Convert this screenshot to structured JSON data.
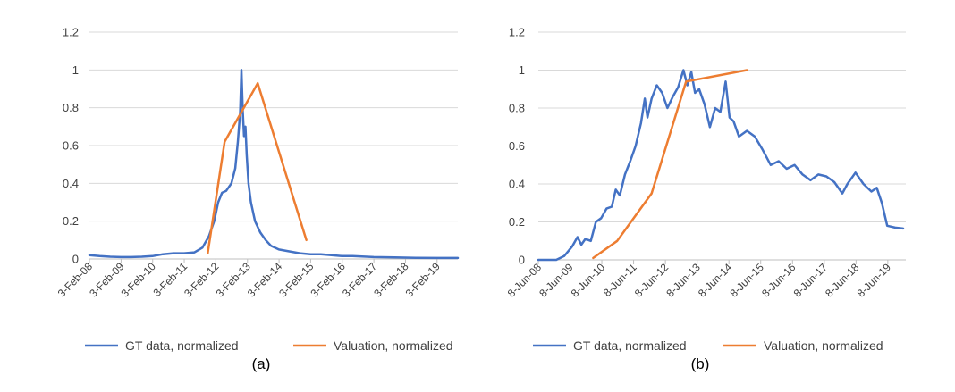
{
  "panels": [
    {
      "caption": "(a)",
      "legend": [
        "GT data, normalized",
        "Valuation, normalized"
      ],
      "chart_data": {
        "type": "line",
        "title": "",
        "xlabel": "",
        "ylabel": "",
        "ylim": [
          0,
          1.2
        ],
        "yticks": [
          "0",
          "0.2",
          "0.4",
          "0.6",
          "0.8",
          "1",
          "1.2"
        ],
        "xlim": [
          "2008-02-03",
          "2019-10-01"
        ],
        "xticks": [
          {
            "date": "2008-02-03",
            "label": "3-Feb-08"
          },
          {
            "date": "2009-02-03",
            "label": "3-Feb-09"
          },
          {
            "date": "2010-02-03",
            "label": "3-Feb-10"
          },
          {
            "date": "2011-02-03",
            "label": "3-Feb-11"
          },
          {
            "date": "2012-02-03",
            "label": "3-Feb-12"
          },
          {
            "date": "2013-02-03",
            "label": "3-Feb-13"
          },
          {
            "date": "2014-02-03",
            "label": "3-Feb-14"
          },
          {
            "date": "2015-02-03",
            "label": "3-Feb-15"
          },
          {
            "date": "2016-02-03",
            "label": "3-Feb-16"
          },
          {
            "date": "2017-02-03",
            "label": "3-Feb-17"
          },
          {
            "date": "2018-02-03",
            "label": "3-Feb-18"
          },
          {
            "date": "2019-02-03",
            "label": "3-Feb-19"
          }
        ],
        "grid": true,
        "legend_position": "bottom",
        "series": [
          {
            "name": "GT data, normalized",
            "color": "#4472C4",
            "points": [
              [
                "2008-02-03",
                0.02
              ],
              [
                "2008-06-01",
                0.015
              ],
              [
                "2008-10-01",
                0.012
              ],
              [
                "2009-02-01",
                0.01
              ],
              [
                "2009-06-01",
                0.01
              ],
              [
                "2009-10-01",
                0.012
              ],
              [
                "2010-02-01",
                0.015
              ],
              [
                "2010-06-01",
                0.025
              ],
              [
                "2010-10-01",
                0.03
              ],
              [
                "2011-02-01",
                0.03
              ],
              [
                "2011-06-01",
                0.035
              ],
              [
                "2011-09-01",
                0.06
              ],
              [
                "2011-11-15",
                0.12
              ],
              [
                "2012-01-15",
                0.2
              ],
              [
                "2012-03-01",
                0.3
              ],
              [
                "2012-04-15",
                0.35
              ],
              [
                "2012-06-01",
                0.36
              ],
              [
                "2012-08-01",
                0.4
              ],
              [
                "2012-09-15",
                0.48
              ],
              [
                "2012-10-15",
                0.62
              ],
              [
                "2012-11-10",
                0.78
              ],
              [
                "2012-11-25",
                1.0
              ],
              [
                "2012-12-10",
                0.78
              ],
              [
                "2012-12-25",
                0.65
              ],
              [
                "2013-01-10",
                0.7
              ],
              [
                "2013-01-25",
                0.55
              ],
              [
                "2013-02-15",
                0.4
              ],
              [
                "2013-03-15",
                0.3
              ],
              [
                "2013-05-01",
                0.2
              ],
              [
                "2013-07-01",
                0.14
              ],
              [
                "2013-09-01",
                0.1
              ],
              [
                "2013-11-01",
                0.07
              ],
              [
                "2014-02-01",
                0.05
              ],
              [
                "2014-06-01",
                0.04
              ],
              [
                "2014-10-01",
                0.03
              ],
              [
                "2015-02-01",
                0.025
              ],
              [
                "2015-06-01",
                0.025
              ],
              [
                "2015-10-01",
                0.02
              ],
              [
                "2016-02-01",
                0.015
              ],
              [
                "2016-06-01",
                0.015
              ],
              [
                "2017-02-01",
                0.01
              ],
              [
                "2017-10-01",
                0.008
              ],
              [
                "2018-06-01",
                0.006
              ],
              [
                "2019-02-01",
                0.005
              ],
              [
                "2019-10-01",
                0.005
              ]
            ]
          },
          {
            "name": "Valuation, normalized",
            "color": "#ED7D31",
            "points": [
              [
                "2011-11-01",
                0.03
              ],
              [
                "2012-05-15",
                0.62
              ],
              [
                "2013-06-01",
                0.93
              ],
              [
                "2014-12-15",
                0.1
              ]
            ]
          }
        ]
      }
    },
    {
      "caption": "(b)",
      "legend": [
        "GT data, normalized",
        "Valuation, normalized"
      ],
      "chart_data": {
        "type": "line",
        "title": "",
        "xlabel": "",
        "ylabel": "",
        "ylim": [
          0,
          1.2
        ],
        "yticks": [
          "0",
          "0.2",
          "0.4",
          "0.6",
          "0.8",
          "1",
          "1.2"
        ],
        "xlim": [
          "2008-06-08",
          "2020-01-01"
        ],
        "xticks": [
          {
            "date": "2008-06-08",
            "label": "8-Jun-08"
          },
          {
            "date": "2009-06-08",
            "label": "8-Jun-09"
          },
          {
            "date": "2010-06-08",
            "label": "8-Jun-10"
          },
          {
            "date": "2011-06-08",
            "label": "8-Jun-11"
          },
          {
            "date": "2012-06-08",
            "label": "8-Jun-12"
          },
          {
            "date": "2013-06-08",
            "label": "8-Jun-13"
          },
          {
            "date": "2014-06-08",
            "label": "8-Jun-14"
          },
          {
            "date": "2015-06-08",
            "label": "8-Jun-15"
          },
          {
            "date": "2016-06-08",
            "label": "8-Jun-16"
          },
          {
            "date": "2017-06-08",
            "label": "8-Jun-17"
          },
          {
            "date": "2018-06-08",
            "label": "8-Jun-18"
          },
          {
            "date": "2019-06-08",
            "label": "8-Jun-19"
          }
        ],
        "grid": true,
        "legend_position": "bottom",
        "series": [
          {
            "name": "GT data, normalized",
            "color": "#4472C4",
            "points": [
              [
                "2008-06-08",
                0.0
              ],
              [
                "2009-01-01",
                0.0
              ],
              [
                "2009-04-01",
                0.02
              ],
              [
                "2009-07-01",
                0.07
              ],
              [
                "2009-09-01",
                0.12
              ],
              [
                "2009-10-15",
                0.08
              ],
              [
                "2009-12-01",
                0.11
              ],
              [
                "2010-02-01",
                0.1
              ],
              [
                "2010-04-01",
                0.2
              ],
              [
                "2010-06-01",
                0.22
              ],
              [
                "2010-08-01",
                0.27
              ],
              [
                "2010-10-01",
                0.28
              ],
              [
                "2010-11-15",
                0.37
              ],
              [
                "2011-01-01",
                0.34
              ],
              [
                "2011-03-01",
                0.45
              ],
              [
                "2011-05-01",
                0.52
              ],
              [
                "2011-07-01",
                0.6
              ],
              [
                "2011-09-01",
                0.72
              ],
              [
                "2011-10-15",
                0.85
              ],
              [
                "2011-11-15",
                0.75
              ],
              [
                "2012-01-01",
                0.85
              ],
              [
                "2012-03-01",
                0.92
              ],
              [
                "2012-05-01",
                0.88
              ],
              [
                "2012-07-01",
                0.8
              ],
              [
                "2012-09-01",
                0.86
              ],
              [
                "2012-11-01",
                0.91
              ],
              [
                "2013-01-01",
                1.0
              ],
              [
                "2013-02-15",
                0.92
              ],
              [
                "2013-04-01",
                0.99
              ],
              [
                "2013-05-15",
                0.88
              ],
              [
                "2013-07-01",
                0.9
              ],
              [
                "2013-09-01",
                0.82
              ],
              [
                "2013-11-01",
                0.7
              ],
              [
                "2014-01-01",
                0.8
              ],
              [
                "2014-03-01",
                0.78
              ],
              [
                "2014-05-01",
                0.94
              ],
              [
                "2014-06-15",
                0.75
              ],
              [
                "2014-08-01",
                0.73
              ],
              [
                "2014-10-01",
                0.65
              ],
              [
                "2015-01-01",
                0.68
              ],
              [
                "2015-04-01",
                0.65
              ],
              [
                "2015-07-01",
                0.58
              ],
              [
                "2015-10-01",
                0.5
              ],
              [
                "2016-01-01",
                0.52
              ],
              [
                "2016-04-01",
                0.48
              ],
              [
                "2016-07-01",
                0.5
              ],
              [
                "2016-10-01",
                0.45
              ],
              [
                "2017-01-01",
                0.42
              ],
              [
                "2017-04-01",
                0.45
              ],
              [
                "2017-07-01",
                0.44
              ],
              [
                "2017-10-01",
                0.41
              ],
              [
                "2018-01-01",
                0.35
              ],
              [
                "2018-03-01",
                0.4
              ],
              [
                "2018-06-01",
                0.46
              ],
              [
                "2018-09-01",
                0.4
              ],
              [
                "2018-12-01",
                0.36
              ],
              [
                "2019-02-01",
                0.38
              ],
              [
                "2019-04-01",
                0.3
              ],
              [
                "2019-06-01",
                0.18
              ],
              [
                "2019-09-01",
                0.17
              ],
              [
                "2019-12-01",
                0.165
              ]
            ]
          },
          {
            "name": "Valuation, normalized",
            "color": "#ED7D31",
            "points": [
              [
                "2010-03-01",
                0.01
              ],
              [
                "2010-12-01",
                0.1
              ],
              [
                "2012-01-01",
                0.35
              ],
              [
                "2013-02-01",
                0.94
              ],
              [
                "2015-01-01",
                1.0
              ]
            ]
          }
        ]
      }
    }
  ]
}
